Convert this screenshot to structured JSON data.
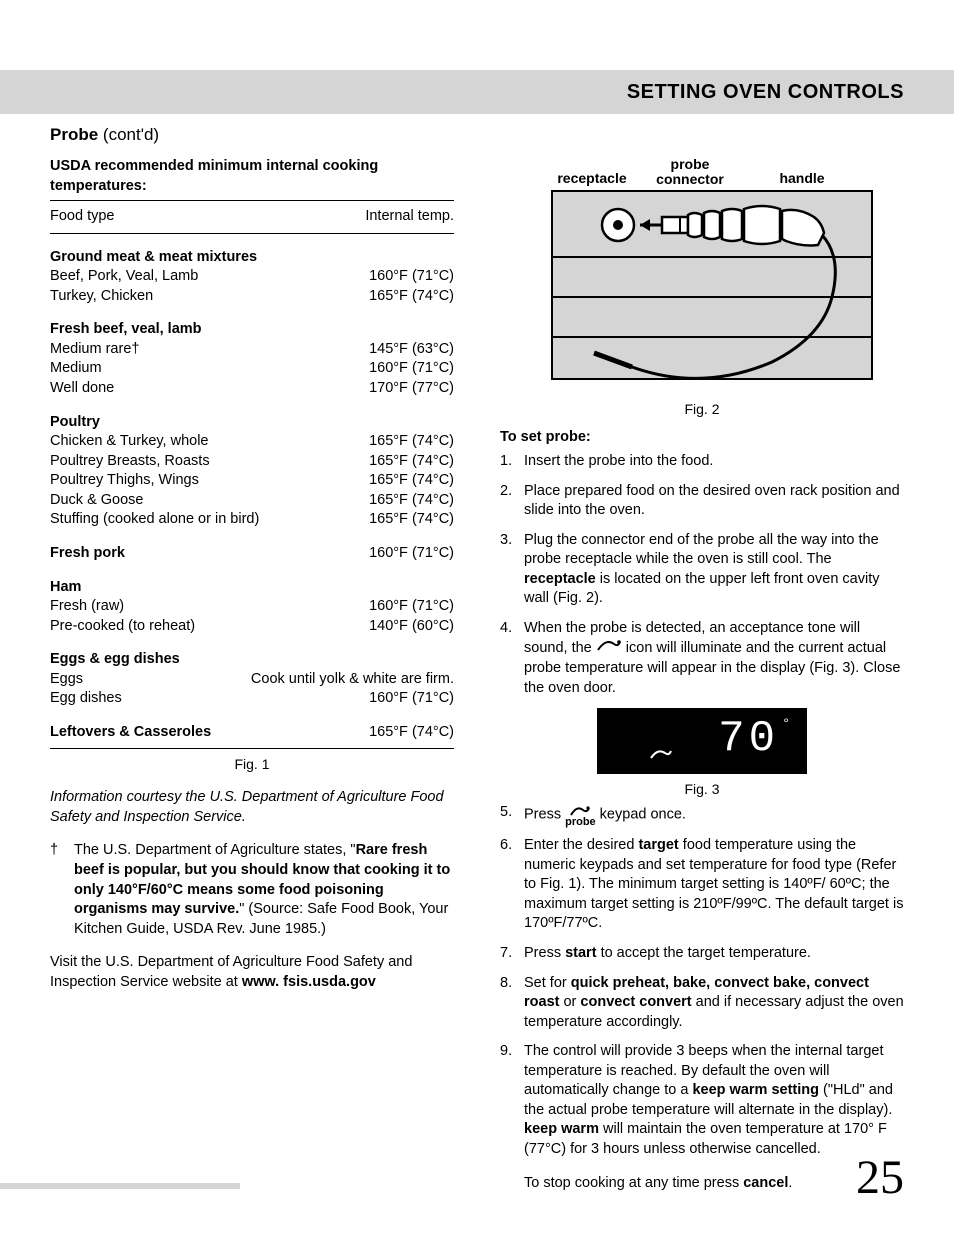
{
  "header": {
    "title": "SETTING OVEN CONTROLS"
  },
  "section": {
    "title": "Probe",
    "contd": "(cont'd)"
  },
  "left": {
    "subhead": "USDA recommended minimum internal cooking temperatures:",
    "col_food": "Food type",
    "col_temp": "Internal temp.",
    "groups": [
      {
        "title": "Ground meat & meat mixtures",
        "rows": [
          {
            "food": "Beef, Pork, Veal, Lamb",
            "temp": "160°F (71°C)"
          },
          {
            "food": "Turkey, Chicken",
            "temp": "165°F (74°C)"
          }
        ]
      },
      {
        "title": "Fresh beef, veal, lamb",
        "rows": [
          {
            "food": "Medium rare†",
            "temp": "145°F (63°C)"
          },
          {
            "food": "Medium",
            "temp": "160°F (71°C)"
          },
          {
            "food": "Well done",
            "temp": "170°F (77°C)"
          }
        ]
      },
      {
        "title": "Poultry",
        "rows": [
          {
            "food": "Chicken & Turkey, whole",
            "temp": "165°F (74°C)"
          },
          {
            "food": "Poultrey Breasts, Roasts",
            "temp": "165°F (74°C)"
          },
          {
            "food": "Poultrey Thighs, Wings",
            "temp": "165°F (74°C)"
          },
          {
            "food": "Duck & Goose",
            "temp": "165°F (74°C)"
          },
          {
            "food": "Stuffing (cooked alone or in bird)",
            "temp": "165°F (74°C)"
          }
        ]
      },
      {
        "title": "Fresh pork",
        "title_temp": "160°F (71°C)",
        "rows": []
      },
      {
        "title": "Ham",
        "rows": [
          {
            "food": "Fresh (raw)",
            "temp": "160°F (71°C)"
          },
          {
            "food": "Pre-cooked (to reheat)",
            "temp": "140°F (60°C)"
          }
        ]
      },
      {
        "title": "Eggs & egg dishes",
        "rows": [
          {
            "food": "Eggs",
            "temp": "Cook until yolk & white are firm."
          },
          {
            "food": "Egg dishes",
            "temp": "160°F (71°C)"
          }
        ]
      }
    ],
    "leftovers": {
      "label": "Leftovers & Casseroles",
      "temp": "165°F (74°C)"
    },
    "fig1": "Fig. 1",
    "credit": "Information courtesy the U.S. Department of Agriculture Food Safety and Inspection Service.",
    "dagger": {
      "pre": "The U.S. Department of Agriculture states, \"",
      "bold": "Rare fresh beef is popular, but you should know that cooking it to only 140°F/60°C means some food poisoning organisms may survive.",
      "post": "\" (Source: Safe Food Book, Your Kitchen Guide, USDA Rev. June 1985.)"
    },
    "visit_pre": "Visit the U.S. Department of Agriculture Food Safety and Inspection Service website at ",
    "visit_bold": "www. fsis.usda.gov"
  },
  "right": {
    "fig2_labels": {
      "receptacle": "receptacle",
      "connector": "probe connector",
      "handle": "handle"
    },
    "fig2": "Fig. 2",
    "set_probe": "To set probe:",
    "steps": {
      "s1": "Insert the probe into the food.",
      "s2": "Place prepared food on the desired oven rack position and slide into the oven.",
      "s3_a": "Plug the connector end of the probe all the way into the probe receptacle while the oven is still cool. The ",
      "s3_bold": "receptacle",
      "s3_b": " is located on the upper left front oven cavity wall (Fig. 2).",
      "s4_a": "When the probe is detected, an acceptance tone will sound, the ",
      "s4_b": " icon will illuminate and the current actual probe temperature will appear in the display (Fig. 3). Close the oven door.",
      "display_temp": "70",
      "fig3": "Fig. 3",
      "s5_a": "Press ",
      "probe_label": "probe",
      "s5_b": " keypad once.",
      "s6_a": "Enter the desired ",
      "s6_bold": "target",
      "s6_b": " food temperature using the numeric keypads and set temperature for food type (Refer to Fig. 1). The minimum target setting is 140ºF/ 60ºC; the maximum target setting is 210ºF/99ºC. The default target is 170ºF/77ºC.",
      "s7_a": "Press ",
      "s7_start": "start",
      "s7_b": " to accept the target temperature.",
      "s8_a": "Set for ",
      "s8_bold": "quick preheat, bake, convect bake, convect roast",
      "s8_mid": " or ",
      "s8_bold2": "convect convert",
      "s8_b": " and if necessary adjust the oven temperature accordingly.",
      "s9_a": "The control will provide 3 beeps when the internal target temperature is reached. By default the oven will automatically change to a ",
      "s9_bold1": "keep warm setting",
      "s9_mid1": " (\"HLd\" and the actual probe temperature will alternate in the display). ",
      "s9_bold2": "keep warm",
      "s9_b": " will maintain the oven temperature at 170° F (77°C) for 3 hours unless otherwise cancelled.",
      "stop_a": "To stop cooking at any time press ",
      "stop_bold": "cancel",
      "stop_b": "."
    }
  },
  "page_num": "25",
  "svg": {
    "stroke": "#000",
    "fill_none": "none",
    "gray": "#d5d5d5"
  }
}
